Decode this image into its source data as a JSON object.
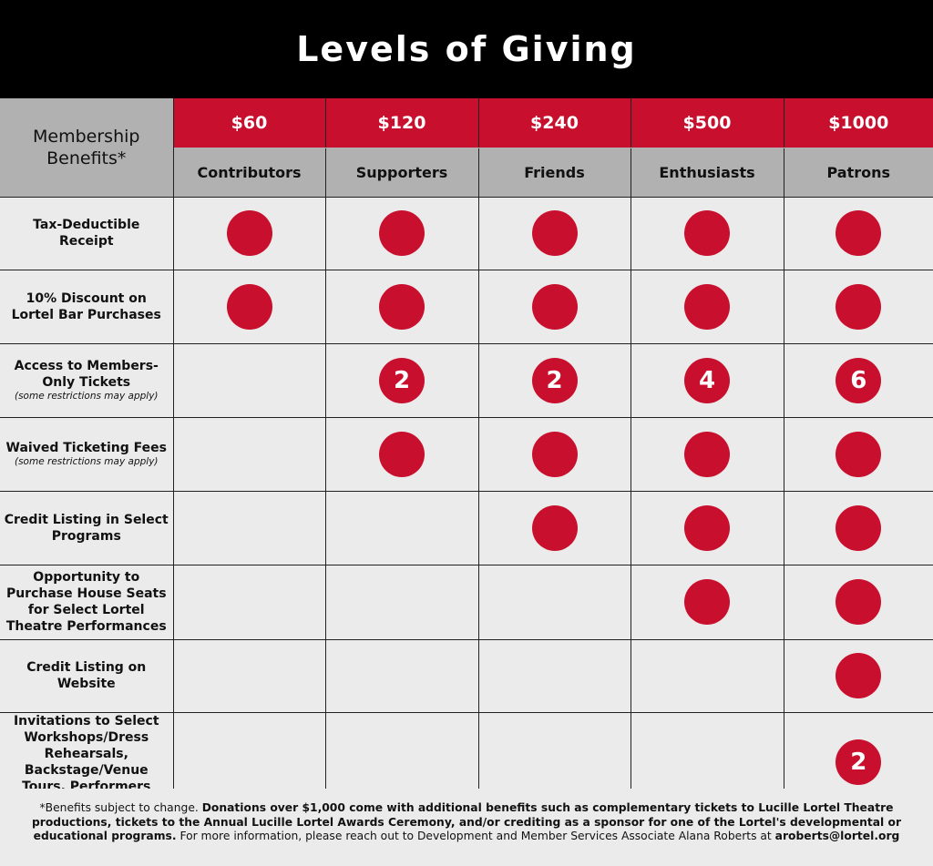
{
  "title": "Levels of Giving",
  "corner_label": "Membership Benefits*",
  "tiers": [
    {
      "price": "$60",
      "name": "Contributors"
    },
    {
      "price": "$120",
      "name": "Supporters"
    },
    {
      "price": "$240",
      "name": "Friends"
    },
    {
      "price": "$500",
      "name": "Enthusiasts"
    },
    {
      "price": "$1000",
      "name": "Patrons"
    }
  ],
  "benefits": [
    {
      "label": "Tax-Deductible Receipt",
      "note": "",
      "cells": [
        "●",
        "●",
        "●",
        "●",
        "●"
      ]
    },
    {
      "label": "10% Discount on Lortel Bar Purchases",
      "note": "",
      "cells": [
        "●",
        "●",
        "●",
        "●",
        "●"
      ]
    },
    {
      "label": "Access to Members-Only Tickets",
      "note": "(some restrictions may apply)",
      "cells": [
        "",
        "2",
        "2",
        "4",
        "6"
      ]
    },
    {
      "label": "Waived Ticketing Fees",
      "note": "(some restrictions may apply)",
      "cells": [
        "",
        "●",
        "●",
        "●",
        "●"
      ]
    },
    {
      "label": "Credit Listing in Select Programs",
      "note": "",
      "cells": [
        "",
        "",
        "●",
        "●",
        "●"
      ]
    },
    {
      "label": "Opportunity to Purchase House Seats for Select Lortel Theatre Performances",
      "note": "",
      "cells": [
        "",
        "",
        "",
        "●",
        "●"
      ]
    },
    {
      "label": "Credit Listing on Website",
      "note": "",
      "cells": [
        "",
        "",
        "",
        "",
        "●"
      ]
    },
    {
      "label": "Invitations to Select Workshops/Dress Rehearsals, Backstage/Venue Tours, Performers Meet & Greet",
      "note": "",
      "cells": [
        "",
        "",
        "",
        "",
        "2"
      ]
    }
  ],
  "footer": {
    "part1": "*Benefits subject to change.",
    "part2": "Donations over $1,000 come with additional benefits such as complementary tickets to Lucille Lortel Theatre productions, tickets to the Annual Lucille Lortel Awards Ceremony, and/or crediting as a sponsor for one of the Lortel's developmental or educational programs.",
    "part3": "For more information, please reach out to Development and Member Services Associate Alana Roberts at",
    "email": "aroberts@lortel.org"
  },
  "colors": {
    "accent": "#c8102e",
    "header_gray": "#b1b1b1",
    "background": "#ebebeb",
    "title_bg": "#000000"
  }
}
